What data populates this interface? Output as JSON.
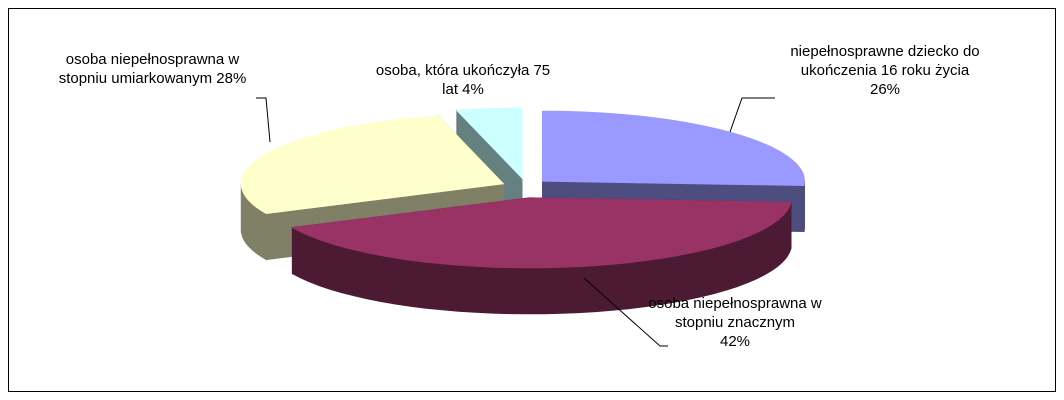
{
  "chart_data": {
    "type": "pie3d",
    "categories": [
      "niepełnosprawne dziecko do ukończenia 16 roku życia",
      "osoba niepełnosprawna w stopniu znacznym",
      "osoba niepełnosprawna w stopniu umiarkowanym",
      "osoba, która ukończyła 75 lat"
    ],
    "values": [
      26,
      42,
      28,
      4
    ],
    "value_labels": [
      "26%",
      "42%",
      "28%",
      "4%"
    ],
    "colors": [
      "#9999ff",
      "#993366",
      "#ffffcc",
      "#ccffff"
    ]
  }
}
